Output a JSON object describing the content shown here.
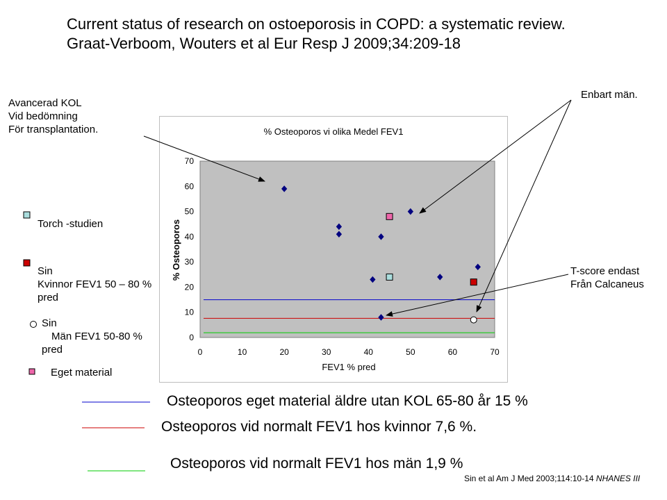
{
  "header": {
    "title": "Current status of research on ostoeporosis in COPD: a systematic review.",
    "citation": "Graat-Verboom, Wouters et al Eur Resp J 2009;34:209-18"
  },
  "annotations": {
    "left_top": [
      "Avancerad KOL",
      "Vid bedömning",
      "För transplantation."
    ],
    "right_top": "Enbart män.",
    "tscore": [
      "T-score endast",
      "Från Calcaneus"
    ]
  },
  "legend": {
    "torch": "Torch -studien",
    "women": [
      "Sin",
      "Kvinnor FEV1 50 – 80 %",
      "pred"
    ],
    "men": [
      "Sin",
      "Män FEV1 50-80 %",
      "pred"
    ],
    "own": "Eget material"
  },
  "bottom_lines": [
    {
      "text": "Osteoporos eget material äldre utan KOL 65-80 år 15 %",
      "color": "#0000cc"
    },
    {
      "text": "Osteoporos vid normalt FEV1 hos kvinnor 7,6 %.",
      "color": "#cc0000"
    },
    {
      "text": "Osteoporos vid normalt FEV1 hos män 1,9 %",
      "color": "#00cc00"
    }
  ],
  "reference": {
    "main": "Sin et al Am J Med 2003;114:10-14",
    "italic": "NHANES III"
  },
  "colors": {
    "plot_bg": "#c0c0c0",
    "marker": "#000080",
    "torch": "#aadddd",
    "women": "#cc0000",
    "own": "#ee66aa",
    "men": "#ffffff"
  },
  "chart_data": {
    "type": "scatter",
    "title": "% Osteoporos vi olika Medel FEV1",
    "xlabel": "FEV1 % pred",
    "ylabel": "% Osteoporos",
    "xlim": [
      0,
      70
    ],
    "ylim": [
      0,
      70
    ],
    "xticks": [
      0,
      10,
      20,
      30,
      40,
      50,
      60,
      70
    ],
    "yticks": [
      0,
      10,
      20,
      30,
      40,
      50,
      60,
      70
    ],
    "series": [
      {
        "marker": "diamond",
        "color": "#000080",
        "x": [
          20,
          33,
          33,
          41,
          43,
          43,
          50,
          57,
          66
        ],
        "y": [
          59,
          44,
          41,
          23,
          40,
          8,
          50,
          24,
          28
        ]
      },
      {
        "marker": "square",
        "color": "#aadddd",
        "x": [
          45
        ],
        "y": [
          24
        ]
      },
      {
        "marker": "square",
        "color": "#cc0000",
        "x": [
          65
        ],
        "y": [
          22
        ]
      },
      {
        "marker": "square",
        "color": "#ee66aa",
        "x": [
          45
        ],
        "y": [
          48
        ]
      },
      {
        "marker": "circle",
        "color": "#ffffff",
        "x": [
          65
        ],
        "y": [
          7
        ]
      }
    ],
    "reference_lines": [
      {
        "y": 15,
        "color": "#0000cc"
      },
      {
        "y": 7.6,
        "color": "#cc0000"
      },
      {
        "y": 1.9,
        "color": "#00cc00"
      }
    ],
    "grid": false
  }
}
